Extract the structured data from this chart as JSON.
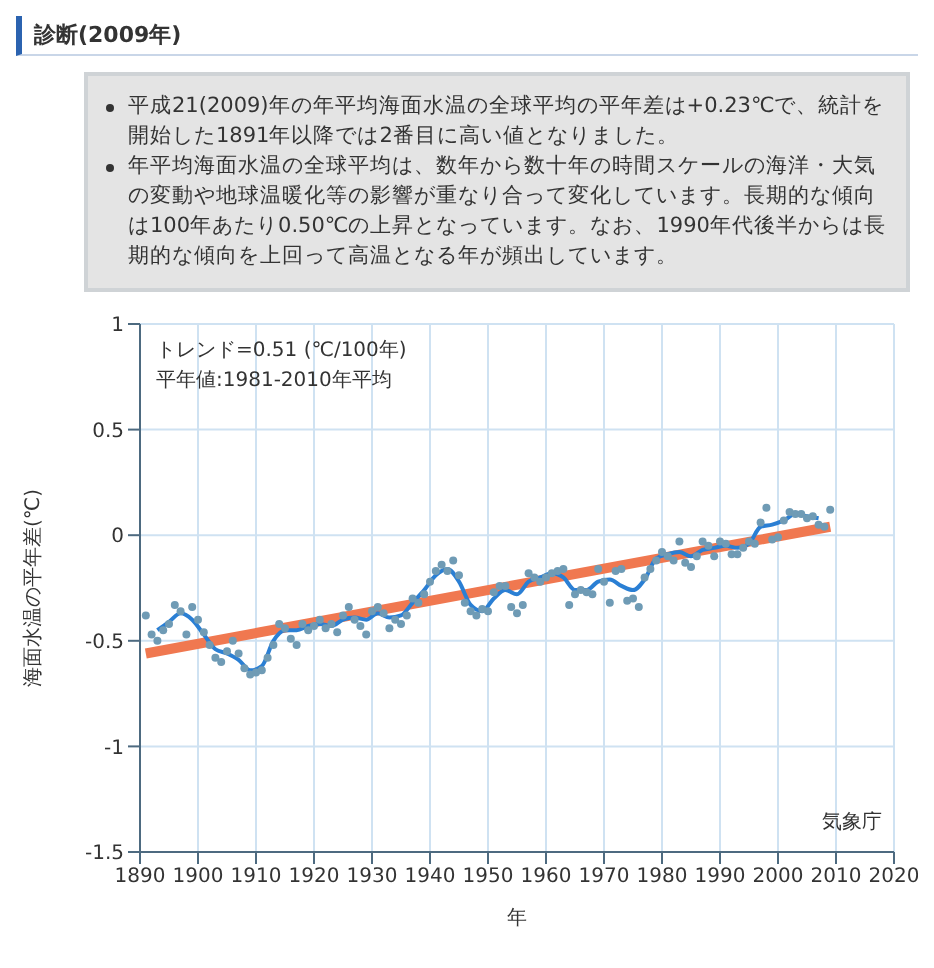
{
  "chart_data": {
    "type": "scatter",
    "title": "診断(2009年)",
    "xlabel": "年",
    "ylabel": "海面水温の平年差(℃)",
    "annotations": [
      "平成21(2009)年の年平均海面水温の全球平均の平年差は+0.23℃で、統計を開始した1891年以降では2番目に高い値となりました。",
      "年平均海面水温の全球平均は、数年から数十年の時間スケールの海洋・大気の変動や地球温暖化等の影響が重なり合って変化しています。長期的な傾向は100年あたり0.50℃の上昇となっています。なお、1990年代後半からは長期的な傾向を上回って高温となる年が頻出しています。",
      "トレンド=0.51 (℃/100年)",
      "平年値:1981-2010年平均",
      "気象庁"
    ],
    "xlim": [
      1890,
      2020
    ],
    "xticks": [
      1890,
      1900,
      1910,
      1920,
      1930,
      1940,
      1950,
      1960,
      1970,
      1980,
      1990,
      2000,
      2010,
      2020
    ],
    "ylim": [
      -1.5,
      1
    ],
    "yticks": [
      -1.5,
      -1,
      -0.5,
      0,
      0.5,
      1
    ],
    "grid": true,
    "series": [
      {
        "marker": "circle",
        "color": "#6f9bb5",
        "x": [
          1891,
          1892,
          1893,
          1894,
          1895,
          1896,
          1897,
          1898,
          1899,
          1900,
          1901,
          1902,
          1903,
          1904,
          1905,
          1906,
          1907,
          1908,
          1909,
          1910,
          1911,
          1912,
          1913,
          1914,
          1915,
          1916,
          1917,
          1918,
          1919,
          1920,
          1921,
          1922,
          1923,
          1924,
          1925,
          1926,
          1927,
          1928,
          1929,
          1930,
          1931,
          1932,
          1933,
          1934,
          1935,
          1936,
          1937,
          1938,
          1939,
          1940,
          1941,
          1942,
          1943,
          1944,
          1945,
          1946,
          1947,
          1948,
          1949,
          1950,
          1951,
          1952,
          1953,
          1954,
          1955,
          1956,
          1957,
          1958,
          1959,
          1960,
          1961,
          1962,
          1963,
          1964,
          1965,
          1966,
          1967,
          1968,
          1969,
          1970,
          1971,
          1972,
          1973,
          1974,
          1975,
          1976,
          1977,
          1978,
          1979,
          1980,
          1981,
          1982,
          1983,
          1984,
          1985,
          1986,
          1987,
          1988,
          1989,
          1990,
          1991,
          1992,
          1993,
          1994,
          1995,
          1996,
          1997,
          1998,
          1999,
          2000,
          2001,
          2002,
          2003,
          2004,
          2005,
          2006,
          2007,
          2008,
          2009
        ],
        "values": [
          -0.38,
          -0.47,
          -0.5,
          -0.45,
          -0.42,
          -0.33,
          -0.36,
          -0.47,
          -0.34,
          -0.4,
          -0.46,
          -0.52,
          -0.58,
          -0.6,
          -0.55,
          -0.5,
          -0.56,
          -0.63,
          -0.66,
          -0.65,
          -0.64,
          -0.58,
          -0.52,
          -0.42,
          -0.44,
          -0.49,
          -0.52,
          -0.42,
          -0.45,
          -0.43,
          -0.4,
          -0.44,
          -0.42,
          -0.46,
          -0.38,
          -0.34,
          -0.4,
          -0.43,
          -0.47,
          -0.36,
          -0.34,
          -0.37,
          -0.44,
          -0.4,
          -0.42,
          -0.38,
          -0.3,
          -0.32,
          -0.28,
          -0.22,
          -0.17,
          -0.14,
          -0.17,
          -0.12,
          -0.19,
          -0.32,
          -0.36,
          -0.38,
          -0.35,
          -0.36,
          -0.27,
          -0.24,
          -0.24,
          -0.34,
          -0.37,
          -0.33,
          -0.18,
          -0.2,
          -0.22,
          -0.2,
          -0.18,
          -0.17,
          -0.16,
          -0.33,
          -0.28,
          -0.26,
          -0.27,
          -0.28,
          -0.16,
          -0.22,
          -0.32,
          -0.17,
          -0.16,
          -0.31,
          -0.3,
          -0.34,
          -0.2,
          -0.16,
          -0.12,
          -0.08,
          -0.1,
          -0.12,
          -0.03,
          -0.13,
          -0.15,
          -0.1,
          -0.03,
          -0.05,
          -0.1,
          -0.03,
          -0.04,
          -0.09,
          -0.09,
          -0.06,
          -0.03,
          -0.04,
          0.06,
          0.13,
          -0.02,
          -0.01,
          0.07,
          0.11,
          0.1,
          0.1,
          0.08,
          0.09,
          0.05,
          0.04,
          0.12
        ]
      },
      {
        "type": "line",
        "color": "#2a7fd4",
        "x": [
          1893,
          1895,
          1897,
          1899,
          1901,
          1903,
          1905,
          1907,
          1909,
          1911,
          1913,
          1915,
          1917,
          1919,
          1921,
          1923,
          1925,
          1927,
          1929,
          1931,
          1933,
          1935,
          1937,
          1939,
          1941,
          1943,
          1945,
          1947,
          1949,
          1951,
          1953,
          1955,
          1957,
          1959,
          1961,
          1963,
          1965,
          1967,
          1969,
          1971,
          1973,
          1975,
          1977,
          1979,
          1981,
          1983,
          1985,
          1987,
          1989,
          1991,
          1993,
          1995,
          1997,
          1999,
          2001,
          2003,
          2005,
          2007
        ],
        "values": [
          -0.45,
          -0.41,
          -0.37,
          -0.4,
          -0.47,
          -0.54,
          -0.56,
          -0.59,
          -0.64,
          -0.62,
          -0.5,
          -0.45,
          -0.45,
          -0.43,
          -0.42,
          -0.43,
          -0.4,
          -0.39,
          -0.4,
          -0.37,
          -0.39,
          -0.38,
          -0.32,
          -0.26,
          -0.19,
          -0.16,
          -0.22,
          -0.33,
          -0.36,
          -0.3,
          -0.26,
          -0.28,
          -0.22,
          -0.2,
          -0.18,
          -0.2,
          -0.26,
          -0.26,
          -0.22,
          -0.21,
          -0.24,
          -0.26,
          -0.21,
          -0.11,
          -0.09,
          -0.08,
          -0.1,
          -0.07,
          -0.06,
          -0.05,
          -0.06,
          -0.04,
          0.04,
          0.05,
          0.07,
          0.1,
          0.09,
          0.08
        ]
      },
      {
        "type": "line",
        "color": "#f07850",
        "x": [
          1891,
          2009
        ],
        "values": [
          -0.56,
          0.04
        ]
      }
    ]
  }
}
